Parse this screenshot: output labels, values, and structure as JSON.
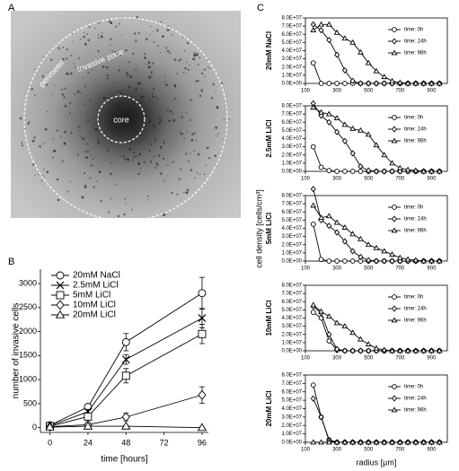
{
  "panels": {
    "a": {
      "label": "A",
      "texts": {
        "perimeter": "perimeter",
        "invasive_zone": "invasive zone",
        "core": "core"
      }
    },
    "b": {
      "label": "B"
    },
    "c": {
      "label": "C",
      "ylabel": "cell density [cells/cm³]",
      "xlabel": "radius [µm]"
    }
  },
  "chart_data": [
    {
      "type": "line",
      "xlabel": "time [hours]",
      "ylabel": "number of invasive cells",
      "x": [
        0,
        24,
        48,
        96
      ],
      "xlim": [
        -6,
        100
      ],
      "xticks": [
        0,
        24,
        48,
        72,
        96
      ],
      "ylim": [
        -100,
        3300
      ],
      "yticks": [
        0,
        500,
        1000,
        1500,
        2000,
        2500,
        3000
      ],
      "legend": "upper left",
      "series": [
        {
          "name": "20mM NaCl",
          "color": "#000000",
          "marker": "circle",
          "values": [
            50,
            430,
            1780,
            2800
          ],
          "errors": [
            20,
            60,
            180,
            330
          ]
        },
        {
          "name": "2.5mM LiCl",
          "color": "#000000",
          "marker": "x",
          "values": [
            40,
            330,
            1420,
            2280
          ],
          "errors": [
            20,
            50,
            100,
            200
          ]
        },
        {
          "name": "5mM LiCl",
          "color": "#000000",
          "marker": "square",
          "values": [
            30,
            230,
            1080,
            1950
          ],
          "errors": [
            15,
            40,
            150,
            200
          ]
        },
        {
          "name": "10mM LiCl",
          "color": "#000000",
          "marker": "diamond",
          "values": [
            20,
            60,
            220,
            680
          ],
          "errors": [
            10,
            20,
            80,
            170
          ]
        },
        {
          "name": "20mM LiCl",
          "color": "#000000",
          "marker": "triangle",
          "values": [
            10,
            30,
            30,
            0
          ],
          "errors": [
            5,
            10,
            10,
            5
          ]
        }
      ]
    },
    {
      "type": "line",
      "ylabel": "20mM NaCl",
      "x": [
        150,
        200,
        250,
        300,
        350,
        400,
        450,
        500,
        550,
        600,
        650,
        700,
        750,
        800,
        850,
        900,
        950
      ],
      "xlim": [
        100,
        1000
      ],
      "xticks": [
        100,
        300,
        500,
        700,
        900
      ],
      "ylim": [
        0,
        80000000
      ],
      "yticks": [
        {
          "value": 0,
          "label": "0.0E+00"
        },
        {
          "value": 10000000,
          "label": "1.0E+07"
        },
        {
          "value": 20000000,
          "label": "2.0E+07"
        },
        {
          "value": 30000000,
          "label": "3.0E+07"
        },
        {
          "value": 40000000,
          "label": "4.0E+07"
        },
        {
          "value": 50000000,
          "label": "5.0E+07"
        },
        {
          "value": 60000000,
          "label": "6.0E+07"
        },
        {
          "value": 70000000,
          "label": "7.0E+07"
        },
        {
          "value": 80000000,
          "label": "8.0E+07"
        }
      ],
      "legend": "upper right",
      "series": [
        {
          "name": "time: 0h",
          "color": "#000000",
          "marker": "circle",
          "values": [
            25000000,
            0,
            0,
            0,
            0,
            0,
            0,
            0,
            0,
            0,
            0,
            0,
            0,
            0,
            0,
            0,
            0
          ]
        },
        {
          "name": "time: 24h",
          "color": "#000000",
          "marker": "diamond",
          "values": [
            72000000,
            65000000,
            53000000,
            35000000,
            16000000,
            3000000,
            0,
            0,
            0,
            0,
            0,
            0,
            0,
            0,
            0,
            0,
            0
          ]
        },
        {
          "name": "time: 96h",
          "color": "#000000",
          "marker": "triangle",
          "values": [
            65000000,
            72000000,
            72000000,
            62000000,
            55000000,
            50000000,
            38000000,
            25000000,
            15000000,
            8000000,
            3000000,
            1000000,
            0,
            0,
            0,
            0,
            0
          ]
        }
      ]
    },
    {
      "type": "line",
      "ylabel": "2.5mM LiCl",
      "x": [
        150,
        200,
        250,
        300,
        350,
        400,
        450,
        500,
        550,
        600,
        650,
        700,
        750,
        800,
        850,
        900,
        950
      ],
      "xlim": [
        100,
        1000
      ],
      "xticks": [
        100,
        300,
        500,
        700,
        900
      ],
      "ylim": [
        0,
        80000000
      ],
      "yticks": [
        {
          "value": 0,
          "label": "0.0E+00"
        },
        {
          "value": 10000000,
          "label": "1.0E+07"
        },
        {
          "value": 20000000,
          "label": "2.0E+07"
        },
        {
          "value": 30000000,
          "label": "3.0E+07"
        },
        {
          "value": 40000000,
          "label": "4.0E+07"
        },
        {
          "value": 50000000,
          "label": "5.0E+07"
        },
        {
          "value": 60000000,
          "label": "6.0E+07"
        },
        {
          "value": 70000000,
          "label": "7.0E+07"
        },
        {
          "value": 80000000,
          "label": "8.0E+07"
        }
      ],
      "legend": "upper right",
      "series": [
        {
          "name": "time: 0h",
          "color": "#000000",
          "marker": "circle",
          "values": [
            30000000,
            5000000,
            1000000,
            0,
            0,
            0,
            0,
            0,
            0,
            0,
            0,
            0,
            0,
            0,
            0,
            0,
            0
          ]
        },
        {
          "name": "time: 24h",
          "color": "#000000",
          "marker": "diamond",
          "values": [
            83000000,
            68000000,
            60000000,
            48000000,
            37000000,
            22000000,
            6000000,
            1000000,
            0,
            0,
            0,
            0,
            0,
            0,
            0,
            0,
            0
          ]
        },
        {
          "name": "time: 96h",
          "color": "#000000",
          "marker": "triangle",
          "values": [
            78000000,
            72000000,
            70000000,
            65000000,
            57000000,
            52000000,
            50000000,
            45000000,
            32000000,
            20000000,
            10000000,
            4000000,
            2000000,
            1000000,
            0,
            0,
            0
          ]
        }
      ]
    },
    {
      "type": "line",
      "ylabel": "5mM LiCl",
      "x": [
        150,
        200,
        250,
        300,
        350,
        400,
        450,
        500,
        550,
        600,
        650,
        700,
        750,
        800,
        850,
        900,
        950
      ],
      "xlim": [
        100,
        1000
      ],
      "xticks": [
        100,
        300,
        500,
        700,
        900
      ],
      "ylim": [
        0,
        80000000
      ],
      "yticks": [
        {
          "value": 0,
          "label": "0.0E+00"
        },
        {
          "value": 10000000,
          "label": "1.0E+07"
        },
        {
          "value": 20000000,
          "label": "2.0E+07"
        },
        {
          "value": 30000000,
          "label": "3.0E+07"
        },
        {
          "value": 40000000,
          "label": "4.0E+07"
        },
        {
          "value": 50000000,
          "label": "5.0E+07"
        },
        {
          "value": 60000000,
          "label": "6.0E+07"
        },
        {
          "value": 70000000,
          "label": "7.0E+07"
        },
        {
          "value": 80000000,
          "label": "8.0E+07"
        }
      ],
      "legend": "upper right",
      "series": [
        {
          "name": "time: 0h",
          "color": "#000000",
          "marker": "circle",
          "values": [
            45000000,
            2000000,
            0,
            0,
            0,
            0,
            0,
            0,
            0,
            0,
            0,
            0,
            0,
            0,
            0,
            0,
            0
          ]
        },
        {
          "name": "time: 24h",
          "color": "#000000",
          "marker": "diamond",
          "values": [
            88000000,
            50000000,
            43000000,
            35000000,
            24000000,
            12000000,
            5000000,
            1000000,
            0,
            0,
            0,
            0,
            0,
            0,
            0,
            0,
            0
          ]
        },
        {
          "name": "time: 96h",
          "color": "#000000",
          "marker": "triangle",
          "values": [
            68000000,
            53000000,
            55000000,
            47000000,
            41000000,
            33000000,
            27000000,
            20000000,
            16000000,
            12000000,
            8000000,
            4000000,
            2000000,
            1000000,
            0,
            0,
            0
          ]
        }
      ]
    },
    {
      "type": "line",
      "ylabel": "10mM LiCl",
      "x": [
        150,
        200,
        250,
        300,
        350,
        400,
        450,
        500,
        550,
        600,
        650,
        700,
        750,
        800,
        850,
        900,
        950
      ],
      "xlim": [
        100,
        1000
      ],
      "xticks": [
        100,
        300,
        500,
        700,
        900
      ],
      "ylim": [
        0,
        80000000
      ],
      "yticks": [
        {
          "value": 0,
          "label": "0.0E+00"
        },
        {
          "value": 10000000,
          "label": "1.0E+07"
        },
        {
          "value": 20000000,
          "label": "2.0E+07"
        },
        {
          "value": 30000000,
          "label": "3.0E+07"
        },
        {
          "value": 40000000,
          "label": "4.0E+07"
        },
        {
          "value": 50000000,
          "label": "5.0E+07"
        },
        {
          "value": 60000000,
          "label": "6.0E+07"
        },
        {
          "value": 70000000,
          "label": "7.0E+07"
        },
        {
          "value": 80000000,
          "label": "8.0E+07"
        }
      ],
      "legend": "upper right",
      "series": [
        {
          "name": "time: 0h",
          "color": "#000000",
          "marker": "circle",
          "values": [
            47000000,
            40000000,
            12000000,
            1000000,
            0,
            0,
            0,
            0,
            0,
            0,
            0,
            0,
            0,
            0,
            0,
            0,
            0
          ]
        },
        {
          "name": "time: 24h",
          "color": "#000000",
          "marker": "diamond",
          "values": [
            54000000,
            46000000,
            20000000,
            2000000,
            0,
            0,
            0,
            0,
            0,
            0,
            0,
            0,
            0,
            0,
            0,
            0,
            0
          ]
        },
        {
          "name": "time: 96h",
          "color": "#000000",
          "marker": "triangle",
          "values": [
            56000000,
            48000000,
            42000000,
            34000000,
            30000000,
            22000000,
            14000000,
            8000000,
            3000000,
            1000000,
            0,
            0,
            0,
            0,
            0,
            0,
            0
          ]
        }
      ]
    },
    {
      "type": "line",
      "ylabel": "20mM LiCl",
      "x": [
        150,
        200,
        250,
        300,
        350,
        400,
        450,
        500,
        550,
        600,
        650,
        700,
        750,
        800,
        850,
        900,
        950
      ],
      "xlim": [
        100,
        1000
      ],
      "xticks": [
        100,
        300,
        500,
        700,
        900
      ],
      "ylim": [
        0,
        80000000
      ],
      "yticks": [
        {
          "value": 0,
          "label": "0.0E+00"
        },
        {
          "value": 10000000,
          "label": "1.0E+07"
        },
        {
          "value": 20000000,
          "label": "2.0E+07"
        },
        {
          "value": 30000000,
          "label": "3.0E+07"
        },
        {
          "value": 40000000,
          "label": "4.0E+07"
        },
        {
          "value": 50000000,
          "label": "5.0E+07"
        },
        {
          "value": 60000000,
          "label": "6.0E+07"
        },
        {
          "value": 70000000,
          "label": "7.0E+07"
        },
        {
          "value": 80000000,
          "label": "8.0E+07"
        }
      ],
      "legend": "upper right",
      "series": [
        {
          "name": "time: 0h",
          "color": "#000000",
          "marker": "circle",
          "values": [
            68000000,
            30000000,
            3000000,
            0,
            0,
            0,
            0,
            0,
            0,
            0,
            0,
            0,
            0,
            0,
            0,
            0,
            0
          ]
        },
        {
          "name": "time: 24h",
          "color": "#000000",
          "marker": "diamond",
          "values": [
            52000000,
            30000000,
            2000000,
            0,
            0,
            0,
            0,
            0,
            0,
            0,
            0,
            0,
            0,
            0,
            0,
            0,
            0
          ]
        },
        {
          "name": "time: 96h",
          "color": "#000000",
          "marker": "triangle",
          "values": [
            0,
            0,
            0,
            0,
            0,
            0,
            0,
            0,
            0,
            0,
            0,
            0,
            0,
            0,
            0,
            0,
            0
          ]
        }
      ]
    }
  ]
}
